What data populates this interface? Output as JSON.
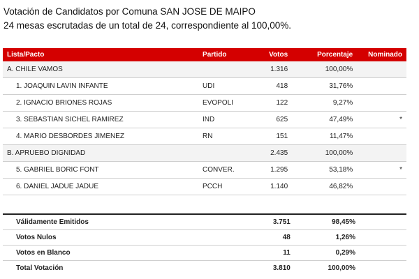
{
  "header": {
    "title": "Votación de Candidatos por Comuna SAN JOSE DE MAIPO",
    "subtitle": "24 mesas escrutadas de un total de 24, correspondiente al 100,00%."
  },
  "table": {
    "columns": {
      "lista": "Lista/Pacto",
      "partido": "Partido",
      "votos": "Votos",
      "porcentaje": "Porcentaje",
      "nominado": "Nominado"
    },
    "rows": [
      {
        "type": "pacto",
        "name": "A. CHILE VAMOS",
        "partido": "",
        "votos": "1.316",
        "pct": "100,00%",
        "nom": ""
      },
      {
        "type": "cand",
        "name": "1. JOAQUIN LAVIN INFANTE",
        "partido": "UDI",
        "votos": "418",
        "pct": "31,76%",
        "nom": ""
      },
      {
        "type": "cand",
        "name": "2. IGNACIO BRIONES ROJAS",
        "partido": "EVOPOLI",
        "votos": "122",
        "pct": "9,27%",
        "nom": ""
      },
      {
        "type": "cand",
        "name": "3. SEBASTIAN SICHEL RAMIREZ",
        "partido": "IND",
        "votos": "625",
        "pct": "47,49%",
        "nom": "*"
      },
      {
        "type": "cand",
        "name": "4. MARIO DESBORDES JIMENEZ",
        "partido": "RN",
        "votos": "151",
        "pct": "11,47%",
        "nom": ""
      },
      {
        "type": "pacto",
        "name": "B. APRUEBO DIGNIDAD",
        "partido": "",
        "votos": "2.435",
        "pct": "100,00%",
        "nom": ""
      },
      {
        "type": "cand",
        "name": "5. GABRIEL BORIC FONT",
        "partido": "CONVER.",
        "votos": "1.295",
        "pct": "53,18%",
        "nom": "*"
      },
      {
        "type": "cand",
        "name": "6. DANIEL JADUE JADUE",
        "partido": "PCCH",
        "votos": "1.140",
        "pct": "46,82%",
        "nom": ""
      }
    ]
  },
  "summary": [
    {
      "label": "Válidamente Emitidos",
      "votos": "3.751",
      "pct": "98,45%"
    },
    {
      "label": "Votos Nulos",
      "votos": "48",
      "pct": "1,26%"
    },
    {
      "label": "Votos en Blanco",
      "votos": "11",
      "pct": "0,29%"
    },
    {
      "label": "Total Votación",
      "votos": "3.810",
      "pct": "100,00%"
    }
  ],
  "colors": {
    "header_bg": "#d40000",
    "pacto_bg": "#f3f3f3"
  }
}
